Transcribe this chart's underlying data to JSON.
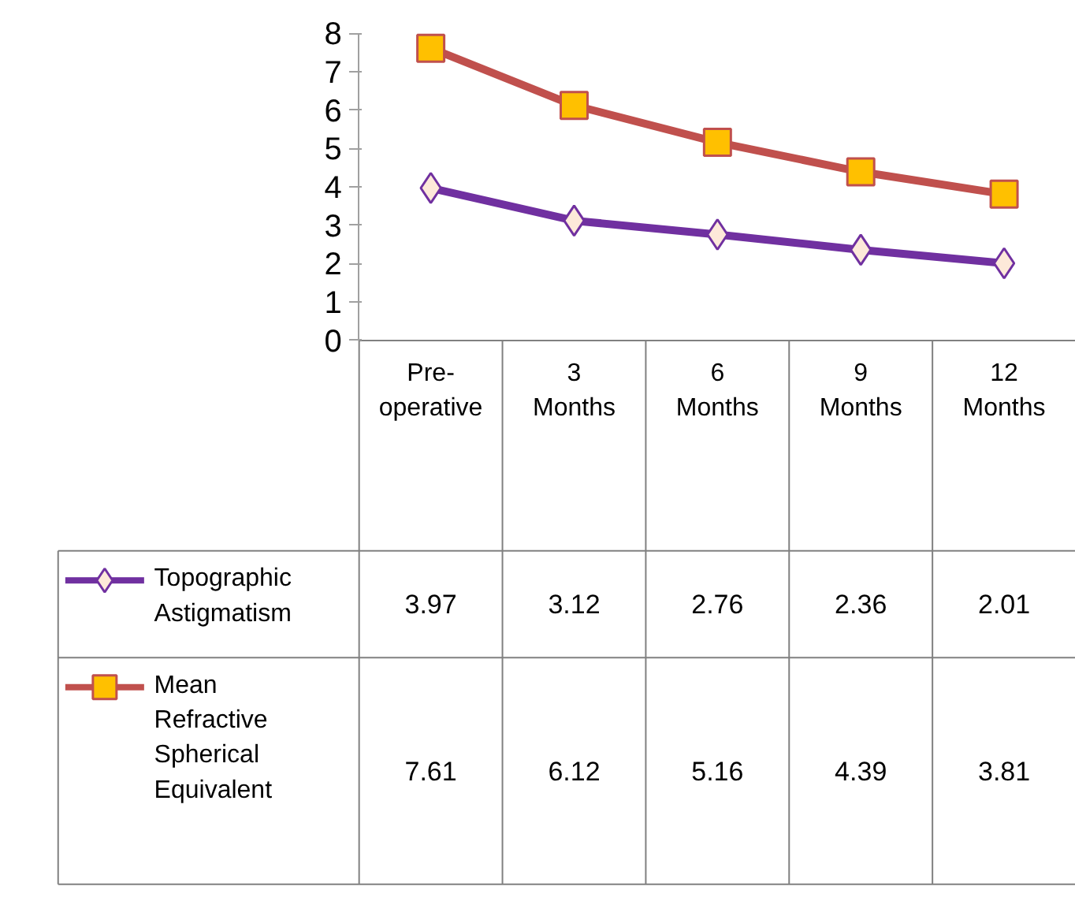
{
  "chart_data": {
    "type": "line",
    "categories": [
      "Pre-operative",
      "3 Months",
      "6 Months",
      "9 Months",
      "12 Months"
    ],
    "series": [
      {
        "name": "Topographic Astigmatism",
        "color": "#7030a0",
        "marker": "diamond",
        "values": [
          3.97,
          3.12,
          2.76,
          2.36,
          2.01
        ]
      },
      {
        "name": "Mean Refractive Spherical Equivalent",
        "color": "#c0504d",
        "marker": "square",
        "values": [
          7.61,
          6.12,
          5.16,
          4.39,
          3.81
        ]
      }
    ],
    "ylim": [
      0,
      8
    ],
    "yticks": [
      0,
      1,
      2,
      3,
      4,
      5,
      6,
      7,
      8
    ],
    "grid": false,
    "legend": "bottom",
    "data_labels": true
  }
}
